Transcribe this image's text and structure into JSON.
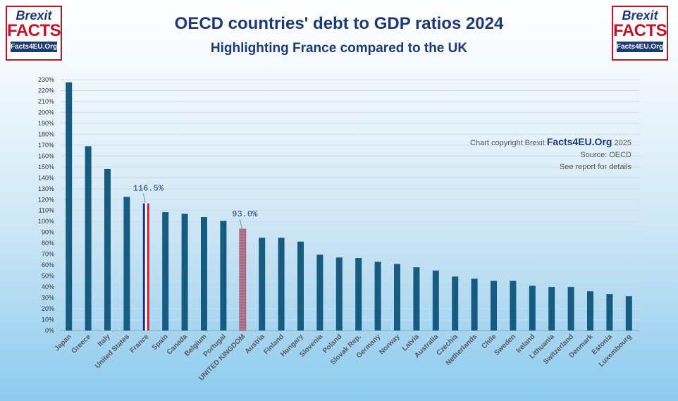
{
  "logo": {
    "line1": "Brexit",
    "line2": "FACTS",
    "line3": "Facts4EU.Org"
  },
  "header": {
    "title": "OECD countries' debt to GDP ratios 2024",
    "subtitle": "Highlighting France compared to the UK"
  },
  "note": {
    "prefix": "Chart copyright Brexit",
    "brand": "Facts4EU.Org",
    "year": "2025",
    "source": "Source: OECD",
    "details": "See report for details"
  },
  "colors": {
    "bar": "#175b80",
    "uk_bar": "#b06878",
    "france_blue": "#1a2a8a",
    "france_red": "#d01f2d",
    "title": "#1d3a78"
  },
  "chart_data": {
    "type": "bar",
    "categories": [
      "Japan",
      "Greece",
      "Italy",
      "United States",
      "France",
      "Spain",
      "Canada",
      "Belgium",
      "Portugal",
      "UNITED KINGDOM",
      "Austria",
      "Finland",
      "Hungary",
      "Slovenia",
      "Poland",
      "Slovak Rep.",
      "Germany",
      "Norway",
      "Latvia",
      "Australia",
      "Czechia",
      "Netherlands",
      "Chile",
      "Sweden",
      "Ireland",
      "Lithuania",
      "Switzerland",
      "Denmark",
      "Estonia",
      "Luxembourg"
    ],
    "values": [
      227.5,
      169,
      148,
      122.5,
      116.5,
      108.5,
      107,
      104,
      100.5,
      93.0,
      85,
      85,
      81.5,
      69.5,
      67,
      66.5,
      63,
      61,
      58,
      55,
      49.5,
      47.5,
      45.5,
      45.5,
      41,
      40,
      40,
      36,
      33.5,
      31.5
    ],
    "highlights": [
      {
        "category": "France",
        "label": "116.5%",
        "style": "tricolore"
      },
      {
        "category": "UNITED KINGDOM",
        "label": "93.0%",
        "style": "union-jack"
      }
    ],
    "ylim": [
      0,
      230
    ],
    "ytick_step": 10,
    "ytick_format": "{v}%",
    "grid": true,
    "title": "OECD countries' debt to GDP ratios 2024",
    "xlabel": "",
    "ylabel": ""
  }
}
